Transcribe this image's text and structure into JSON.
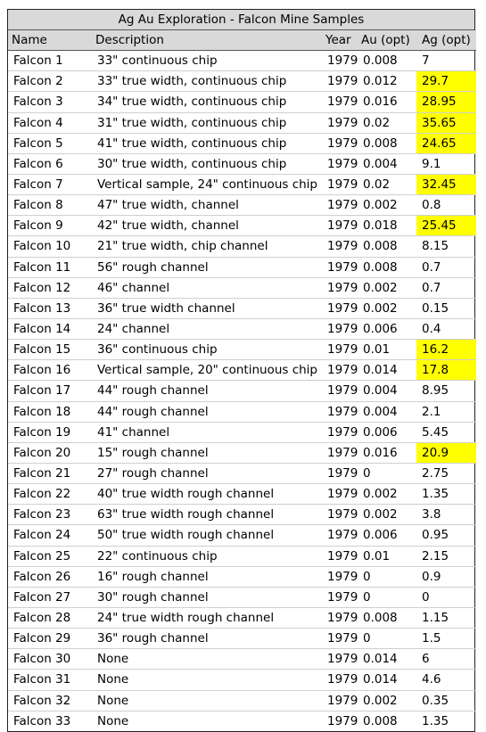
{
  "title": "Ag Au Exploration - Falcon Mine Samples",
  "colors": {
    "header_bg": "#d9d9d9",
    "highlight": "#ffff00"
  },
  "columns": [
    "Name",
    "Description",
    "Year",
    "Au (opt)",
    "Ag (opt)"
  ],
  "rows": [
    {
      "name": "Falcon 1",
      "desc": "33\" continuous chip",
      "year": "1979",
      "au": "0.008",
      "ag": "7",
      "hl": false
    },
    {
      "name": "Falcon 2",
      "desc": "33\" true width, continuous chip",
      "year": "1979",
      "au": "0.012",
      "ag": "29.7",
      "hl": true
    },
    {
      "name": "Falcon 3",
      "desc": "34\" true width, continuous chip",
      "year": "1979",
      "au": "0.016",
      "ag": "28.95",
      "hl": true
    },
    {
      "name": "Falcon 4",
      "desc": "31\" true width, continuous chip",
      "year": "1979",
      "au": "0.02",
      "ag": "35.65",
      "hl": true
    },
    {
      "name": "Falcon 5",
      "desc": "41\" true width, continuous chip",
      "year": "1979",
      "au": "0.008",
      "ag": "24.65",
      "hl": true
    },
    {
      "name": "Falcon 6",
      "desc": "30\" true width, continuous chip",
      "year": "1979",
      "au": "0.004",
      "ag": "9.1",
      "hl": false
    },
    {
      "name": "Falcon 7",
      "desc": "Vertical sample, 24\" continuous chip",
      "year": "1979",
      "au": "0.02",
      "ag": "32.45",
      "hl": true
    },
    {
      "name": "Falcon 8",
      "desc": "47\" true width, channel",
      "year": "1979",
      "au": "0.002",
      "ag": "0.8",
      "hl": false
    },
    {
      "name": "Falcon 9",
      "desc": "42\" true width, channel",
      "year": "1979",
      "au": "0.018",
      "ag": "25.45",
      "hl": true
    },
    {
      "name": "Falcon 10",
      "desc": "21\" true width, chip channel",
      "year": "1979",
      "au": "0.008",
      "ag": "8.15",
      "hl": false
    },
    {
      "name": "Falcon 11",
      "desc": "56\" rough channel",
      "year": "1979",
      "au": "0.008",
      "ag": "0.7",
      "hl": false
    },
    {
      "name": "Falcon 12",
      "desc": "46\" channel",
      "year": "1979",
      "au": "0.002",
      "ag": "0.7",
      "hl": false
    },
    {
      "name": "Falcon 13",
      "desc": "36\" true width channel",
      "year": "1979",
      "au": "0.002",
      "ag": "0.15",
      "hl": false
    },
    {
      "name": "Falcon 14",
      "desc": "24\" channel",
      "year": "1979",
      "au": "0.006",
      "ag": "0.4",
      "hl": false
    },
    {
      "name": "Falcon 15",
      "desc": "36\" continuous chip",
      "year": "1979",
      "au": "0.01",
      "ag": "16.2",
      "hl": true
    },
    {
      "name": "Falcon 16",
      "desc": "Vertical sample, 20\" continuous chip",
      "year": "1979",
      "au": "0.014",
      "ag": "17.8",
      "hl": true
    },
    {
      "name": "Falcon 17",
      "desc": "44\" rough channel",
      "year": "1979",
      "au": "0.004",
      "ag": "8.95",
      "hl": false
    },
    {
      "name": "Falcon 18",
      "desc": "44\" rough channel",
      "year": "1979",
      "au": "0.004",
      "ag": "2.1",
      "hl": false
    },
    {
      "name": "Falcon 19",
      "desc": "41\" channel",
      "year": "1979",
      "au": "0.006",
      "ag": "5.45",
      "hl": false
    },
    {
      "name": "Falcon 20",
      "desc": "15\" rough channel",
      "year": "1979",
      "au": "0.016",
      "ag": "20.9",
      "hl": true
    },
    {
      "name": "Falcon 21",
      "desc": "27\" rough channel",
      "year": "1979",
      "au": "0",
      "ag": "2.75",
      "hl": false
    },
    {
      "name": "Falcon 22",
      "desc": "40\" true width rough channel",
      "year": "1979",
      "au": "0.002",
      "ag": "1.35",
      "hl": false
    },
    {
      "name": "Falcon 23",
      "desc": "63\" true width rough channel",
      "year": "1979",
      "au": "0.002",
      "ag": "3.8",
      "hl": false
    },
    {
      "name": "Falcon 24",
      "desc": "50\" true width rough channel",
      "year": "1979",
      "au": "0.006",
      "ag": "0.95",
      "hl": false
    },
    {
      "name": "Falcon 25",
      "desc": "22\" continuous chip",
      "year": "1979",
      "au": "0.01",
      "ag": "2.15",
      "hl": false
    },
    {
      "name": "Falcon 26",
      "desc": "16\" rough channel",
      "year": "1979",
      "au": "0",
      "ag": "0.9",
      "hl": false
    },
    {
      "name": "Falcon 27",
      "desc": "30\" rough channel",
      "year": "1979",
      "au": "0",
      "ag": "0",
      "hl": false
    },
    {
      "name": "Falcon 28",
      "desc": "24\" true width rough channel",
      "year": "1979",
      "au": "0.008",
      "ag": "1.15",
      "hl": false
    },
    {
      "name": "Falcon 29",
      "desc": "36\" rough channel",
      "year": "1979",
      "au": "0",
      "ag": "1.5",
      "hl": false
    },
    {
      "name": "Falcon 30",
      "desc": "None",
      "year": "1979",
      "au": "0.014",
      "ag": "6",
      "hl": false
    },
    {
      "name": "Falcon 31",
      "desc": "None",
      "year": "1979",
      "au": "0.014",
      "ag": "4.6",
      "hl": false
    },
    {
      "name": "Falcon 32",
      "desc": "None",
      "year": "1979",
      "au": "0.002",
      "ag": "0.35",
      "hl": false
    },
    {
      "name": "Falcon 33",
      "desc": "None",
      "year": "1979",
      "au": "0.008",
      "ag": "1.35",
      "hl": false
    }
  ]
}
